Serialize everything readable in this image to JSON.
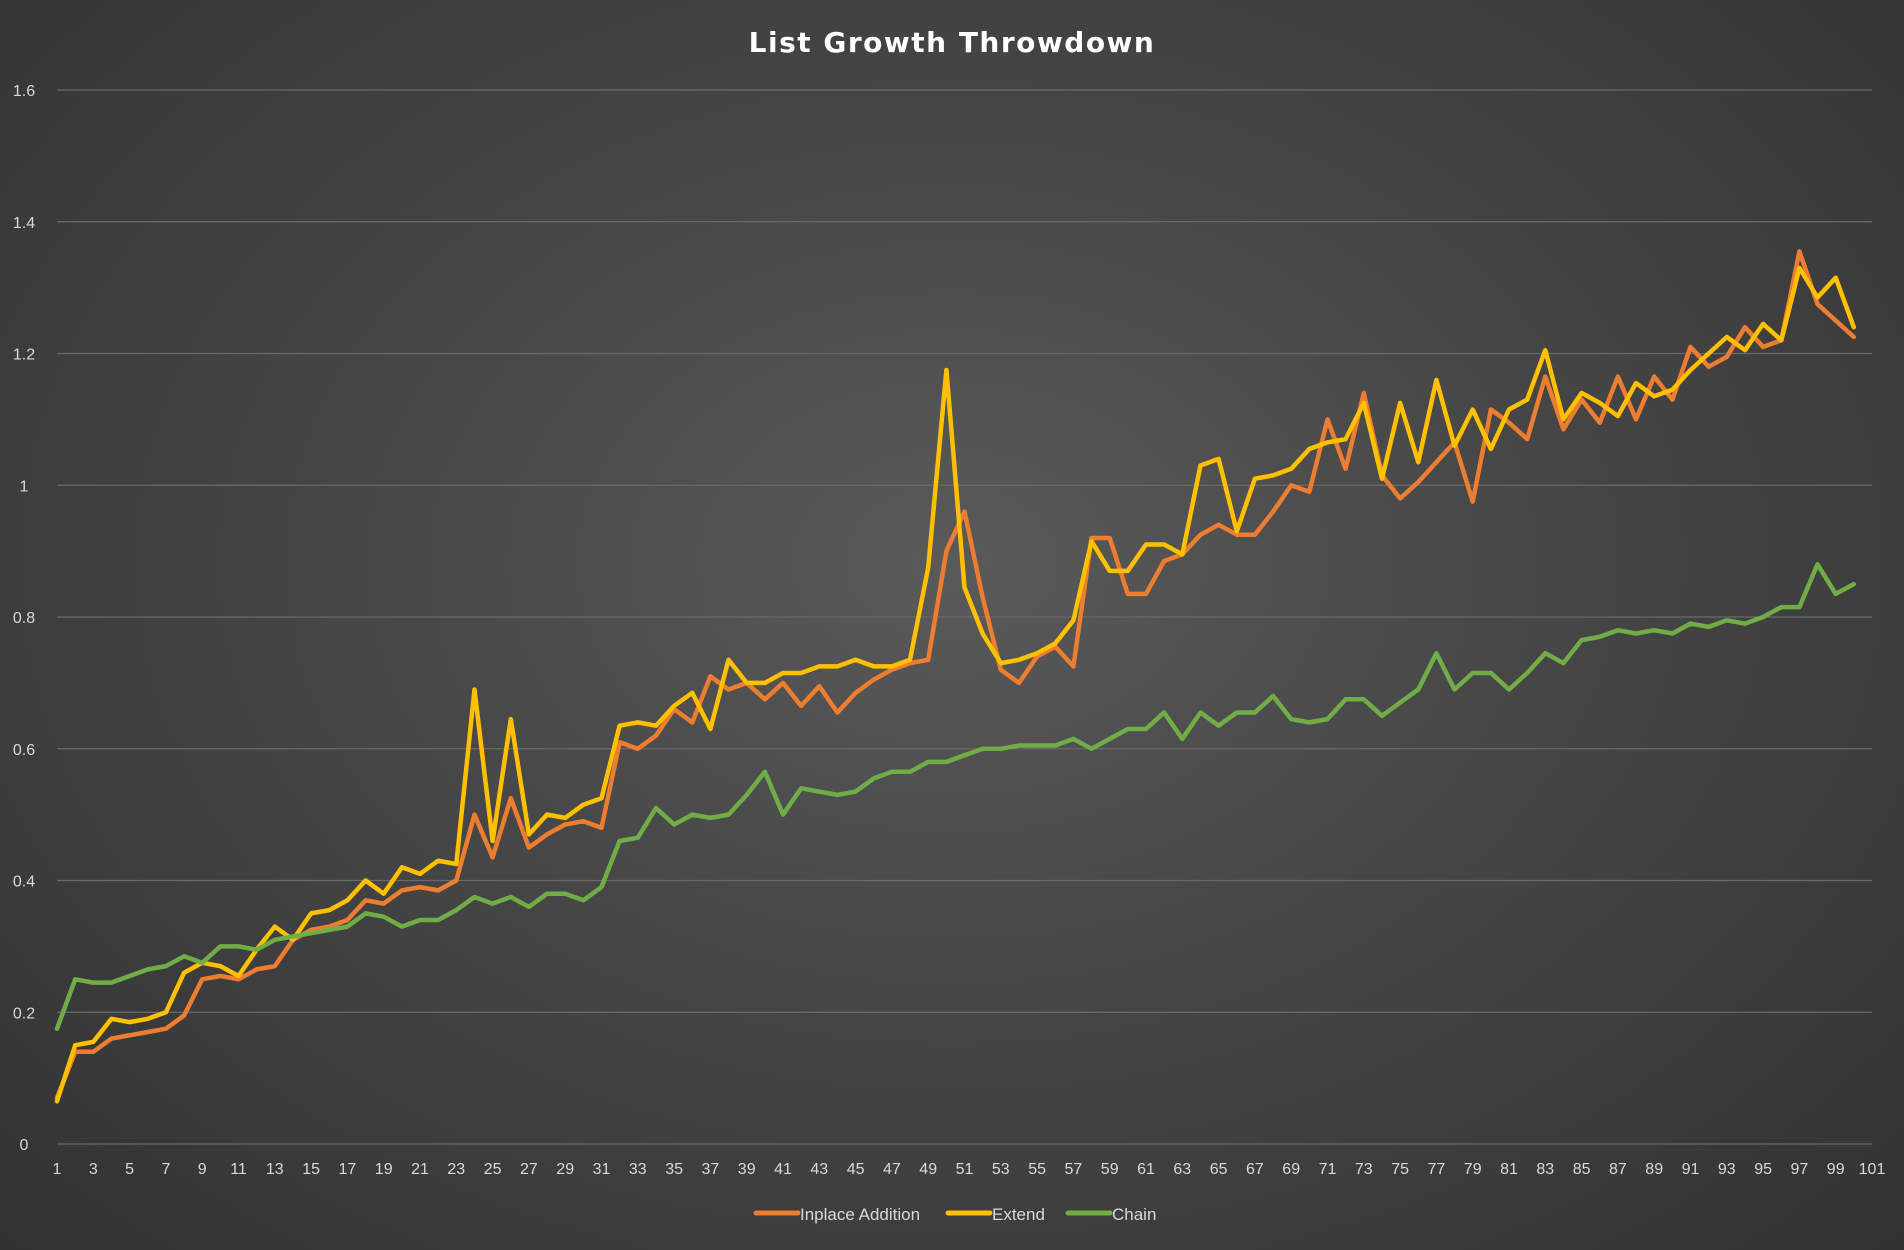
{
  "chart_data": {
    "type": "line",
    "title": "List Growth Throwdown",
    "xlabel": "",
    "ylabel": "",
    "ylim": [
      0,
      1.6
    ],
    "yticks": [
      "0",
      "0.2",
      "0.4",
      "0.6",
      "0.8",
      "1",
      "1.2",
      "1.4",
      "1.6"
    ],
    "x": [
      1,
      2,
      3,
      4,
      5,
      6,
      7,
      8,
      9,
      10,
      11,
      12,
      13,
      14,
      15,
      16,
      17,
      18,
      19,
      20,
      21,
      22,
      23,
      24,
      25,
      26,
      27,
      28,
      29,
      30,
      31,
      32,
      33,
      34,
      35,
      36,
      37,
      38,
      39,
      40,
      41,
      42,
      43,
      44,
      45,
      46,
      47,
      48,
      49,
      50,
      51,
      52,
      53,
      54,
      55,
      56,
      57,
      58,
      59,
      60,
      61,
      62,
      63,
      64,
      65,
      66,
      67,
      68,
      69,
      70,
      71,
      72,
      73,
      74,
      75,
      76,
      77,
      78,
      79,
      80,
      81,
      82,
      83,
      84,
      85,
      86,
      87,
      88,
      89,
      90,
      91,
      92,
      93,
      94,
      95,
      96,
      97,
      98,
      99,
      100
    ],
    "xticks": [
      "1",
      "3",
      "5",
      "7",
      "9",
      "11",
      "13",
      "15",
      "17",
      "19",
      "21",
      "23",
      "25",
      "27",
      "29",
      "31",
      "33",
      "35",
      "37",
      "39",
      "41",
      "43",
      "45",
      "47",
      "49",
      "51",
      "53",
      "55",
      "57",
      "59",
      "61",
      "63",
      "65",
      "67",
      "69",
      "71",
      "73",
      "75",
      "77",
      "79",
      "81",
      "83",
      "85",
      "87",
      "89",
      "91",
      "93",
      "95",
      "97",
      "99",
      "101"
    ],
    "grid": true,
    "legend_position": "bottom",
    "series": [
      {
        "name": "Inplace Addition",
        "color": "#ed7d31",
        "values": [
          0.07,
          0.14,
          0.14,
          0.16,
          0.165,
          0.17,
          0.175,
          0.195,
          0.25,
          0.255,
          0.25,
          0.265,
          0.27,
          0.31,
          0.325,
          0.33,
          0.34,
          0.37,
          0.365,
          0.385,
          0.39,
          0.385,
          0.4,
          0.5,
          0.435,
          0.525,
          0.45,
          0.47,
          0.485,
          0.49,
          0.48,
          0.61,
          0.6,
          0.62,
          0.66,
          0.64,
          0.71,
          0.69,
          0.7,
          0.675,
          0.7,
          0.665,
          0.695,
          0.655,
          0.685,
          0.705,
          0.72,
          0.73,
          0.735,
          0.9,
          0.96,
          0.83,
          0.72,
          0.7,
          0.74,
          0.755,
          0.725,
          0.92,
          0.92,
          0.835,
          0.835,
          0.885,
          0.895,
          0.925,
          0.94,
          0.925,
          0.925,
          0.96,
          1.0,
          0.99,
          1.1,
          1.025,
          1.14,
          1.015,
          0.98,
          1.005,
          1.035,
          1.065,
          0.975,
          1.115,
          1.095,
          1.07,
          1.165,
          1.085,
          1.13,
          1.095,
          1.165,
          1.1,
          1.165,
          1.13,
          1.21,
          1.18,
          1.195,
          1.24,
          1.21,
          1.22,
          1.355,
          1.275,
          1.25,
          1.225
        ]
      },
      {
        "name": "Extend",
        "color": "#ffc000",
        "values": [
          0.065,
          0.15,
          0.155,
          0.19,
          0.185,
          0.19,
          0.2,
          0.26,
          0.275,
          0.27,
          0.255,
          0.295,
          0.33,
          0.31,
          0.35,
          0.355,
          0.37,
          0.4,
          0.38,
          0.42,
          0.41,
          0.43,
          0.425,
          0.69,
          0.46,
          0.645,
          0.47,
          0.5,
          0.495,
          0.515,
          0.525,
          0.635,
          0.64,
          0.635,
          0.665,
          0.685,
          0.63,
          0.735,
          0.7,
          0.7,
          0.715,
          0.715,
          0.725,
          0.725,
          0.735,
          0.725,
          0.725,
          0.735,
          0.875,
          1.175,
          0.845,
          0.775,
          0.73,
          0.735,
          0.745,
          0.76,
          0.795,
          0.915,
          0.87,
          0.87,
          0.91,
          0.91,
          0.895,
          1.03,
          1.04,
          0.93,
          1.01,
          1.015,
          1.025,
          1.055,
          1.065,
          1.07,
          1.125,
          1.01,
          1.125,
          1.035,
          1.16,
          1.06,
          1.115,
          1.055,
          1.115,
          1.13,
          1.205,
          1.1,
          1.14,
          1.125,
          1.105,
          1.155,
          1.135,
          1.145,
          1.175,
          1.2,
          1.225,
          1.205,
          1.245,
          1.22,
          1.33,
          1.285,
          1.315,
          1.24
        ]
      },
      {
        "name": "Chain",
        "color": "#70ad47",
        "values": [
          0.175,
          0.25,
          0.245,
          0.245,
          0.255,
          0.265,
          0.27,
          0.285,
          0.275,
          0.3,
          0.3,
          0.295,
          0.31,
          0.315,
          0.32,
          0.325,
          0.33,
          0.35,
          0.345,
          0.33,
          0.34,
          0.34,
          0.355,
          0.375,
          0.365,
          0.375,
          0.36,
          0.38,
          0.38,
          0.37,
          0.39,
          0.46,
          0.465,
          0.51,
          0.485,
          0.5,
          0.495,
          0.5,
          0.53,
          0.565,
          0.5,
          0.54,
          0.535,
          0.53,
          0.535,
          0.555,
          0.565,
          0.565,
          0.58,
          0.58,
          0.59,
          0.6,
          0.6,
          0.605,
          0.605,
          0.605,
          0.615,
          0.6,
          0.615,
          0.63,
          0.63,
          0.655,
          0.615,
          0.655,
          0.635,
          0.655,
          0.655,
          0.68,
          0.645,
          0.64,
          0.645,
          0.675,
          0.675,
          0.65,
          0.67,
          0.69,
          0.745,
          0.69,
          0.715,
          0.715,
          0.69,
          0.715,
          0.745,
          0.73,
          0.765,
          0.77,
          0.78,
          0.775,
          0.78,
          0.775,
          0.79,
          0.785,
          0.795,
          0.79,
          0.8,
          0.815,
          0.815,
          0.88,
          0.835,
          0.85
        ]
      }
    ]
  }
}
